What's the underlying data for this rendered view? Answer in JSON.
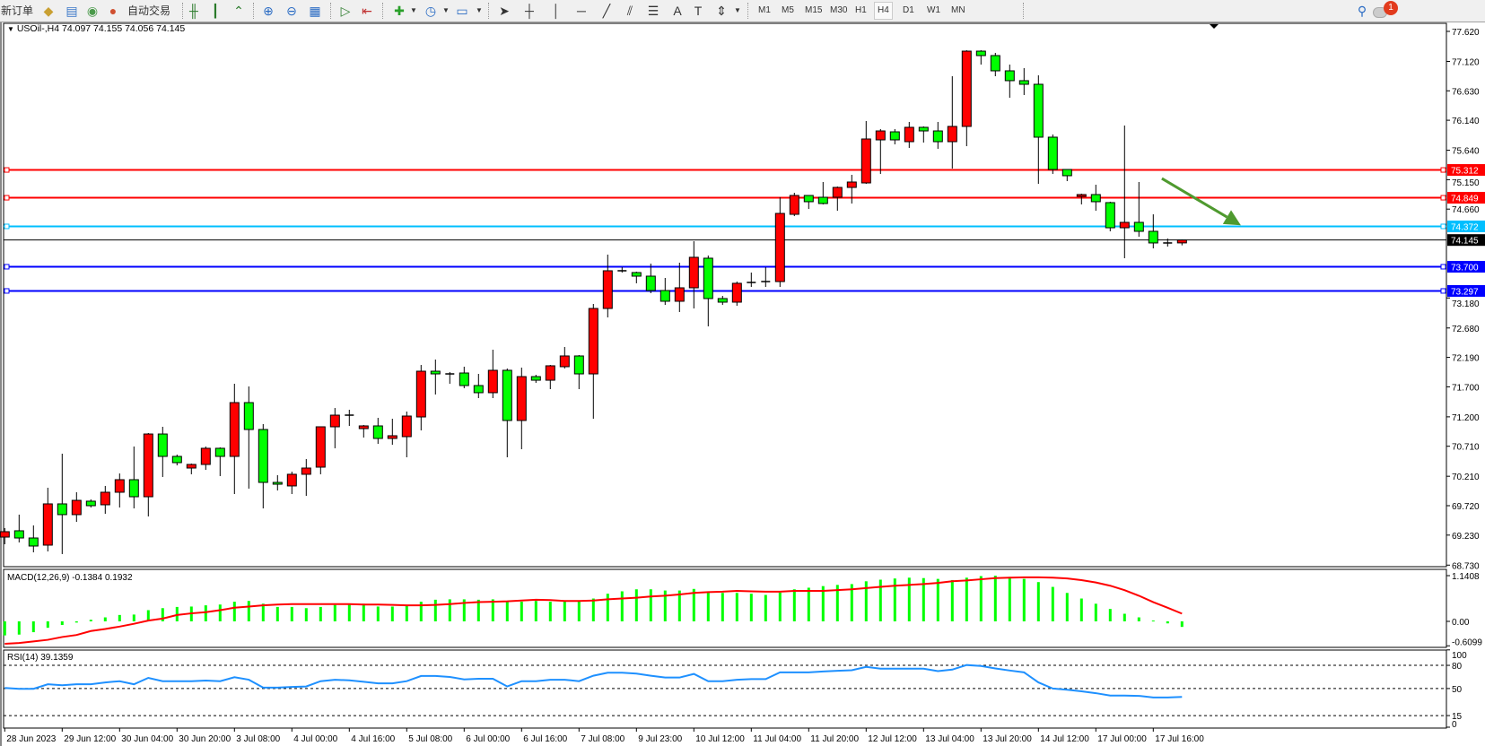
{
  "toolbar": {
    "new_order": "新订单",
    "auto_trading": "自动交易",
    "timeframes": [
      "M1",
      "M5",
      "M15",
      "M30",
      "H1",
      "H4",
      "D1",
      "W1",
      "MN"
    ],
    "selected_timeframe": "H4",
    "notification_count": "1",
    "icons": [
      "new-order-icon",
      "history-center-icon",
      "market-watch-icon",
      "auto-trading-icon",
      "bar-chart-icon",
      "candlestick-chart-icon",
      "line-chart-icon",
      "zoom-in-icon",
      "zoom-out-icon",
      "tile-windows-icon",
      "auto-scroll-icon",
      "chart-shift-icon",
      "indicators-icon",
      "periods-icon",
      "templates-icon",
      "cursor-icon",
      "crosshair-icon",
      "vertical-line-icon",
      "horizontal-line-icon",
      "trendline-icon",
      "fibo-channel-icon",
      "fibo-retracement-icon",
      "text-icon",
      "text-label-icon",
      "arrows-icon",
      "search-icon",
      "notification-icon"
    ]
  },
  "chart": {
    "symbol_info": "USOil-,H4  74.097 74.155 74.056 74.145",
    "macd_title": "MACD(12,26,9) -0.1384 0.1932",
    "rsi_title": "RSI(14) 39.1359"
  },
  "chart_data": {
    "type": "candlestick",
    "symbol": "USOil-",
    "timeframe": "H4",
    "colors": {
      "bull": "#ff0000",
      "bear": "#00ff00",
      "macd_histogram": "#00ff00",
      "macd_signal": "#ff0000",
      "rsi": "#1e90ff",
      "arrow": "#4f9a2f"
    },
    "ohlc_order": [
      "open",
      "high",
      "low",
      "close"
    ],
    "candles": [
      [
        69.197,
        69.347,
        69.078,
        69.287
      ],
      [
        69.302,
        69.571,
        69.108,
        69.182
      ],
      [
        69.182,
        69.391,
        68.943,
        69.048
      ],
      [
        69.063,
        70.019,
        68.958,
        69.75
      ],
      [
        69.75,
        70.586,
        68.914,
        69.571
      ],
      [
        69.571,
        69.944,
        69.451,
        69.809
      ],
      [
        69.795,
        69.825,
        69.69,
        69.72
      ],
      [
        69.735,
        70.049,
        69.585,
        69.944
      ],
      [
        69.944,
        70.257,
        69.69,
        70.153
      ],
      [
        70.153,
        70.706,
        69.675,
        69.869
      ],
      [
        69.869,
        70.93,
        69.541,
        70.914
      ],
      [
        70.914,
        71.034,
        70.198,
        70.541
      ],
      [
        70.541,
        70.571,
        70.392,
        70.437
      ],
      [
        70.347,
        70.422,
        70.243,
        70.407
      ],
      [
        70.407,
        70.706,
        70.317,
        70.676
      ],
      [
        70.676,
        70.691,
        70.213,
        70.541
      ],
      [
        70.541,
        71.751,
        69.914,
        71.437
      ],
      [
        71.437,
        71.706,
        70.004,
        70.989
      ],
      [
        70.989,
        71.079,
        69.675,
        70.108
      ],
      [
        70.108,
        70.228,
        69.974,
        70.078
      ],
      [
        70.049,
        70.287,
        69.914,
        70.243
      ],
      [
        70.243,
        70.496,
        69.884,
        70.347
      ],
      [
        70.362,
        71.034,
        70.243,
        71.034
      ],
      [
        71.034,
        71.347,
        70.676,
        71.228
      ],
      [
        71.228,
        71.318,
        71.049,
        71.228
      ],
      [
        71.004,
        71.064,
        70.855,
        71.049
      ],
      [
        71.049,
        71.183,
        70.75,
        70.84
      ],
      [
        70.84,
        71.168,
        70.735,
        70.885
      ],
      [
        70.87,
        71.288,
        70.526,
        71.213
      ],
      [
        71.198,
        72.064,
        70.974,
        71.96
      ],
      [
        71.96,
        72.154,
        71.572,
        71.915
      ],
      [
        71.915,
        71.945,
        71.751,
        71.915
      ],
      [
        71.93,
        72.035,
        71.676,
        71.721
      ],
      [
        71.721,
        71.915,
        71.512,
        71.602
      ],
      [
        71.602,
        72.318,
        71.512,
        71.975
      ],
      [
        71.975,
        72.005,
        70.526,
        71.139
      ],
      [
        71.139,
        72.02,
        70.661,
        71.87
      ],
      [
        71.87,
        71.9,
        71.766,
        71.81
      ],
      [
        71.81,
        72.064,
        71.661,
        72.05
      ],
      [
        72.035,
        72.363,
        72.005,
        72.214
      ],
      [
        72.214,
        72.229,
        71.661,
        71.915
      ],
      [
        71.915,
        73.08,
        71.168,
        73.005
      ],
      [
        73.005,
        73.902,
        72.856,
        73.633
      ],
      [
        73.633,
        73.692,
        73.603,
        73.633
      ],
      [
        73.603,
        73.618,
        73.424,
        73.543
      ],
      [
        73.543,
        73.752,
        73.259,
        73.304
      ],
      [
        73.304,
        73.513,
        73.065,
        73.125
      ],
      [
        73.125,
        73.767,
        72.946,
        73.349
      ],
      [
        73.349,
        74.125,
        73.005,
        73.857
      ],
      [
        73.842,
        73.887,
        72.707,
        73.17
      ],
      [
        73.17,
        73.214,
        73.065,
        73.11
      ],
      [
        73.11,
        73.453,
        73.05,
        73.424
      ],
      [
        73.438,
        73.603,
        73.364,
        73.438
      ],
      [
        73.438,
        73.692,
        73.364,
        73.453
      ],
      [
        73.453,
        74.857,
        73.364,
        74.588
      ],
      [
        74.573,
        74.932,
        74.543,
        74.887
      ],
      [
        74.887,
        74.887,
        74.663,
        74.783
      ],
      [
        74.857,
        75.111,
        74.738,
        74.753
      ],
      [
        74.857,
        75.036,
        74.633,
        75.021
      ],
      [
        75.021,
        75.231,
        74.753,
        75.111
      ],
      [
        75.096,
        76.127,
        75.081,
        75.828
      ],
      [
        75.813,
        75.992,
        75.246,
        75.962
      ],
      [
        75.947,
        75.992,
        75.738,
        75.813
      ],
      [
        75.783,
        76.112,
        75.679,
        76.022
      ],
      [
        76.022,
        76.037,
        75.768,
        75.962
      ],
      [
        75.962,
        76.112,
        75.664,
        75.783
      ],
      [
        75.783,
        76.873,
        75.335,
        76.037
      ],
      [
        76.037,
        77.306,
        75.708,
        77.291
      ],
      [
        77.291,
        77.306,
        77.067,
        77.217
      ],
      [
        77.217,
        77.262,
        76.873,
        76.963
      ],
      [
        76.963,
        77.067,
        76.515,
        76.799
      ],
      [
        76.799,
        77.008,
        76.56,
        76.739
      ],
      [
        76.739,
        76.888,
        75.081,
        75.858
      ],
      [
        75.858,
        75.903,
        75.246,
        75.32
      ],
      [
        75.32,
        75.32,
        75.126,
        75.216
      ],
      [
        74.872,
        74.917,
        74.738,
        74.902
      ],
      [
        74.902,
        75.066,
        74.633,
        74.783
      ],
      [
        74.768,
        74.783,
        74.29,
        74.349
      ],
      [
        74.349,
        76.052,
        73.842,
        74.439
      ],
      [
        74.439,
        75.111,
        74.2,
        74.29
      ],
      [
        74.29,
        74.573,
        74.006,
        74.096
      ],
      [
        74.096,
        74.17,
        74.036,
        74.096
      ],
      [
        74.097,
        74.155,
        74.056,
        74.145
      ]
    ],
    "price_axis": {
      "range": [
        68.73,
        77.62
      ],
      "tick_labels": [
        "77.620",
        "77.120",
        "76.630",
        "76.140",
        "75.640",
        "75.150",
        "74.660",
        "73.180",
        "72.680",
        "72.190",
        "71.700",
        "71.200",
        "70.710",
        "70.210",
        "69.720",
        "69.230",
        "68.730"
      ]
    },
    "time_axis": {
      "tick_every_n_bars": 4,
      "tick_labels": [
        "28 Jun 2023",
        "29 Jun 12:00",
        "30 Jun 04:00",
        "30 Jun 20:00",
        "3 Jul 08:00",
        "4 Jul 00:00",
        "4 Jul 16:00",
        "5 Jul 08:00",
        "6 Jul 00:00",
        "6 Jul 16:00",
        "7 Jul 08:00",
        "9 Jul 23:00",
        "10 Jul 12:00",
        "11 Jul 04:00",
        "11 Jul 20:00",
        "12 Jul 12:00",
        "13 Jul 04:00",
        "13 Jul 20:00",
        "14 Jul 12:00",
        "17 Jul 00:00",
        "17 Jul 16:00"
      ]
    },
    "horizontal_lines": [
      {
        "price": 75.312,
        "label": "75.312",
        "color": "#ff0000"
      },
      {
        "price": 74.849,
        "label": "74.849",
        "color": "#ff0000"
      },
      {
        "price": 74.372,
        "label": "74.372",
        "color": "#00bfff"
      },
      {
        "price": 74.145,
        "label": "74.145",
        "color": "#000000"
      },
      {
        "price": 73.7,
        "label": "73.700",
        "color": "#0000ff"
      },
      {
        "price": 73.297,
        "label": "73.297",
        "color": "#0000ff"
      }
    ],
    "annotation_arrow": {
      "direction": "down-right",
      "color": "#4f9a2f",
      "from": {
        "bar": 80.6,
        "price": 75.17
      },
      "to": {
        "bar": 86.1,
        "price": 74.39
      }
    },
    "macd": {
      "params": "12,26,9",
      "axis_labels": [
        "1.1408",
        "0.00",
        "-0.6099"
      ],
      "axis_values": [
        1.1408,
        0,
        -0.6099
      ],
      "histogram": [
        -0.35,
        -0.33,
        -0.27,
        -0.16,
        -0.09,
        -0.03,
        0.04,
        0.1,
        0.16,
        0.17,
        0.28,
        0.33,
        0.36,
        0.37,
        0.4,
        0.42,
        0.49,
        0.51,
        0.44,
        0.36,
        0.36,
        0.33,
        0.36,
        0.41,
        0.43,
        0.44,
        0.37,
        0.37,
        0.4,
        0.49,
        0.54,
        0.55,
        0.55,
        0.54,
        0.55,
        0.49,
        0.49,
        0.51,
        0.49,
        0.52,
        0.51,
        0.57,
        0.69,
        0.75,
        0.8,
        0.8,
        0.77,
        0.77,
        0.81,
        0.75,
        0.71,
        0.71,
        0.69,
        0.66,
        0.72,
        0.8,
        0.84,
        0.88,
        0.91,
        0.93,
        1.0,
        1.04,
        1.07,
        1.09,
        1.08,
        1.06,
        1.03,
        1.09,
        1.13,
        1.14,
        1.11,
        1.06,
        0.98,
        0.86,
        0.71,
        0.57,
        0.44,
        0.31,
        0.19,
        0.1,
        0.02,
        -0.05,
        -0.1384
      ],
      "signal": [
        -0.56,
        -0.54,
        -0.5,
        -0.46,
        -0.39,
        -0.34,
        -0.24,
        -0.19,
        -0.13,
        -0.06,
        0.02,
        0.07,
        0.16,
        0.2,
        0.23,
        0.28,
        0.34,
        0.37,
        0.4,
        0.42,
        0.43,
        0.43,
        0.43,
        0.43,
        0.43,
        0.42,
        0.42,
        0.41,
        0.4,
        0.4,
        0.41,
        0.43,
        0.46,
        0.48,
        0.49,
        0.5,
        0.52,
        0.54,
        0.53,
        0.51,
        0.51,
        0.52,
        0.55,
        0.57,
        0.59,
        0.62,
        0.64,
        0.67,
        0.71,
        0.73,
        0.74,
        0.76,
        0.75,
        0.74,
        0.74,
        0.76,
        0.76,
        0.76,
        0.78,
        0.8,
        0.83,
        0.86,
        0.89,
        0.91,
        0.93,
        0.96,
        1.0,
        1.02,
        1.05,
        1.08,
        1.09,
        1.1,
        1.1,
        1.09,
        1.07,
        1.03,
        0.97,
        0.89,
        0.78,
        0.64,
        0.48,
        0.34,
        0.1932
      ]
    },
    "rsi": {
      "period": 14,
      "axis_labels": [
        "100",
        "80",
        "50",
        "15",
        "0"
      ],
      "axis_values": [
        100,
        80,
        50,
        15,
        0
      ],
      "levels": [
        80,
        50,
        15
      ],
      "values": [
        50.8,
        49.6,
        49.6,
        55.5,
        54.3,
        55.5,
        55.5,
        57.9,
        59.5,
        55.5,
        63.8,
        59.5,
        59.5,
        59.5,
        60.3,
        59.5,
        64.6,
        61.4,
        51.2,
        51.2,
        52.0,
        52.7,
        59.5,
        61.4,
        60.6,
        58.7,
        56.7,
        56.7,
        59.5,
        66.2,
        66.2,
        65.0,
        61.8,
        62.6,
        62.6,
        52.7,
        59.5,
        59.5,
        61.4,
        61.4,
        59.5,
        66.6,
        70.5,
        70.5,
        69.3,
        66.6,
        64.2,
        64.2,
        68.9,
        59.5,
        59.5,
        61.4,
        62.2,
        62.2,
        70.9,
        70.9,
        70.9,
        72.1,
        72.9,
        73.7,
        78.0,
        75.7,
        75.7,
        75.7,
        75.7,
        72.5,
        74.5,
        80.4,
        79.2,
        76.0,
        73.3,
        70.9,
        57.9,
        50.0,
        48.4,
        46.4,
        44.0,
        40.9,
        40.9,
        40.5,
        38.5,
        38.5,
        39.1359
      ]
    }
  }
}
